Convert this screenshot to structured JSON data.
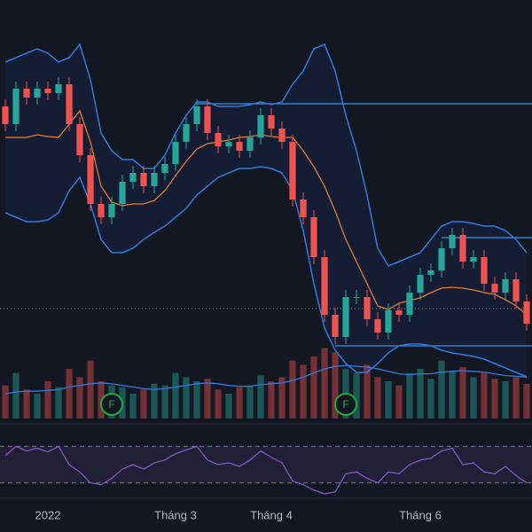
{
  "chart_data": {
    "type": "candlestick",
    "categories": [
      null,
      null,
      null,
      null,
      "2022",
      null,
      null,
      null,
      null,
      null,
      null,
      null,
      null,
      null,
      null,
      null,
      "Tháng 3",
      null,
      null,
      null,
      null,
      null,
      null,
      null,
      null,
      "Tháng 4",
      null,
      null,
      null,
      null,
      null,
      null,
      null,
      null,
      null,
      null,
      null,
      null,
      null,
      "Tháng 6",
      null,
      null,
      null,
      null,
      null,
      null,
      null,
      null,
      null,
      null
    ],
    "open": [
      360,
      340,
      380,
      370,
      380,
      375,
      385,
      340,
      305,
      250,
      235,
      250,
      275,
      285,
      270,
      285,
      295,
      320,
      340,
      360,
      330,
      315,
      320,
      310,
      325,
      350,
      335,
      320,
      255,
      235,
      190,
      125,
      100,
      145,
      145,
      120,
      105,
      130,
      125,
      150,
      170,
      175,
      200,
      215,
      185,
      190,
      160,
      150,
      165,
      140
    ],
    "close": [
      340,
      380,
      370,
      380,
      375,
      385,
      340,
      305,
      250,
      235,
      250,
      275,
      285,
      270,
      285,
      295,
      320,
      340,
      360,
      330,
      315,
      320,
      310,
      325,
      350,
      335,
      320,
      255,
      235,
      190,
      125,
      100,
      145,
      145,
      120,
      105,
      130,
      125,
      150,
      170,
      175,
      200,
      215,
      185,
      190,
      160,
      150,
      165,
      140,
      115
    ],
    "high": [
      368,
      388,
      388,
      388,
      388,
      393,
      393,
      348,
      313,
      258,
      258,
      283,
      293,
      293,
      293,
      303,
      328,
      348,
      368,
      368,
      338,
      328,
      328,
      333,
      358,
      358,
      343,
      328,
      263,
      243,
      198,
      133,
      153,
      153,
      153,
      128,
      138,
      138,
      158,
      178,
      183,
      208,
      223,
      223,
      198,
      198,
      168,
      173,
      173,
      148
    ],
    "low": [
      332,
      332,
      362,
      362,
      367,
      367,
      332,
      297,
      242,
      227,
      227,
      242,
      267,
      262,
      262,
      277,
      287,
      312,
      332,
      322,
      307,
      307,
      302,
      302,
      317,
      327,
      312,
      247,
      227,
      182,
      117,
      92,
      92,
      137,
      112,
      97,
      97,
      117,
      117,
      142,
      162,
      167,
      192,
      177,
      177,
      152,
      142,
      142,
      132,
      107
    ],
    "ylim": [
      0,
      480
    ],
    "up_color": "#26a69a",
    "down_color": "#ef5350",
    "bands": {
      "color": "#3179d8",
      "mid_color": "#e07b30",
      "upper": [
        410,
        415,
        420,
        425,
        420,
        410,
        415,
        430,
        390,
        330,
        310,
        300,
        300,
        290,
        290,
        305,
        330,
        350,
        365,
        365,
        360,
        360,
        360,
        362,
        365,
        362,
        365,
        385,
        400,
        425,
        430,
        400,
        350,
        310,
        260,
        200,
        180,
        185,
        190,
        195,
        210,
        225,
        230,
        230,
        228,
        225,
        225,
        220,
        210,
        195
      ],
      "middle": [
        325,
        325,
        325,
        328,
        326,
        325,
        340,
        355,
        320,
        270,
        252,
        248,
        250,
        250,
        254,
        265,
        282,
        298,
        312,
        318,
        320,
        322,
        325,
        326,
        328,
        326,
        325,
        325,
        310,
        292,
        270,
        242,
        210,
        185,
        160,
        135,
        131,
        138,
        141,
        144,
        150,
        155,
        156,
        155,
        153,
        150,
        148,
        142,
        135,
        125
      ],
      "lower": [
        240,
        235,
        230,
        230,
        232,
        240,
        265,
        280,
        250,
        210,
        195,
        195,
        200,
        210,
        218,
        225,
        235,
        245,
        260,
        270,
        280,
        285,
        290,
        290,
        292,
        290,
        285,
        265,
        220,
        160,
        110,
        85,
        70,
        60,
        60,
        70,
        82,
        90,
        92,
        92,
        90,
        85,
        82,
        80,
        78,
        75,
        70,
        65,
        60,
        55
      ]
    },
    "levels": [
      363,
      212,
      90
    ],
    "levels_start": [
      18,
      41,
      31
    ],
    "level_color": "#3d8fe0",
    "price_line": 132,
    "volume": [
      40,
      55,
      35,
      30,
      45,
      38,
      60,
      50,
      70,
      45,
      40,
      38,
      30,
      35,
      42,
      40,
      55,
      50,
      45,
      48,
      35,
      30,
      38,
      40,
      52,
      45,
      50,
      70,
      65,
      75,
      85,
      80,
      60,
      55,
      65,
      50,
      45,
      40,
      55,
      60,
      48,
      70,
      58,
      62,
      50,
      55,
      48,
      45,
      50,
      42
    ],
    "volume_ma": [
      30,
      32,
      33,
      33,
      34,
      35,
      38,
      40,
      42,
      43,
      42,
      40,
      38,
      36,
      35,
      36,
      38,
      40,
      42,
      43,
      42,
      40,
      39,
      39,
      41,
      42,
      43,
      46,
      50,
      55,
      60,
      63,
      64,
      63,
      62,
      60,
      57,
      54,
      53,
      54,
      54,
      56,
      57,
      58,
      57,
      56,
      54,
      52,
      51,
      50
    ],
    "volume_ylim": [
      0,
      120
    ],
    "events": [
      {
        "index": 10,
        "label": "F"
      },
      {
        "index": 32,
        "label": "F"
      }
    ],
    "rsi": [
      60,
      70,
      65,
      68,
      64,
      70,
      50,
      42,
      30,
      28,
      35,
      45,
      50,
      45,
      52,
      55,
      62,
      66,
      70,
      55,
      50,
      52,
      48,
      55,
      65,
      58,
      52,
      32,
      28,
      22,
      18,
      20,
      40,
      42,
      35,
      30,
      42,
      40,
      50,
      55,
      57,
      65,
      68,
      50,
      52,
      42,
      40,
      48,
      38,
      30
    ],
    "rsi_ylim": [
      15,
      85
    ],
    "rsi_bands": [
      30,
      70
    ],
    "rsi_color": "#7e57c2"
  }
}
